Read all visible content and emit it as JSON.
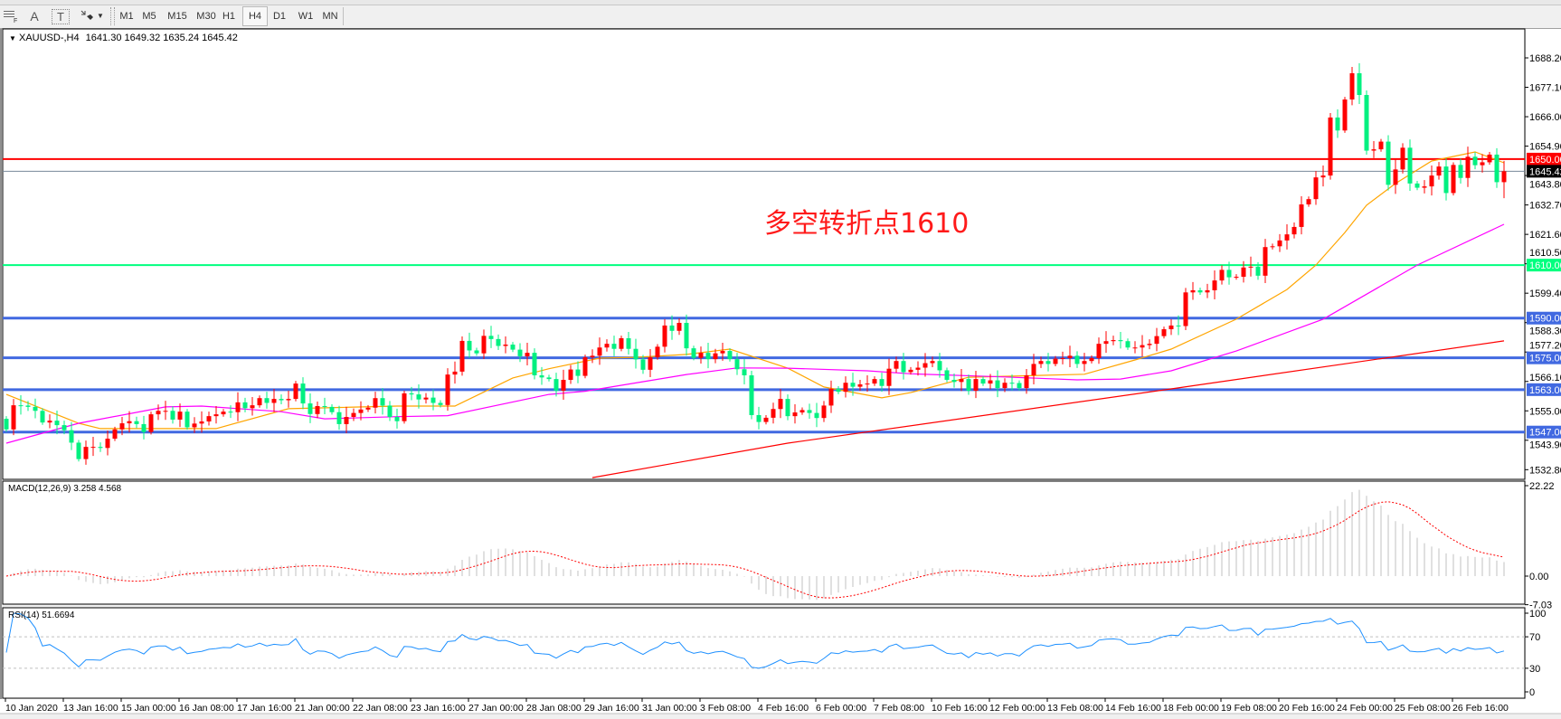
{
  "toolbar": {
    "icons": [
      "grid-f-icon",
      "text-a-icon",
      "text-label-icon",
      "arrows-icon",
      "dropdown-arrow-icon"
    ],
    "text_a": "A",
    "text_t": "T",
    "timeframes": [
      "M1",
      "M5",
      "M15",
      "M30",
      "H1",
      "H4",
      "D1",
      "W1",
      "MN"
    ],
    "active_timeframe": "H4"
  },
  "header": {
    "symbol": "XAUUSD-,H4",
    "ohlc": "1641.30 1649.32 1635.24 1645.42"
  },
  "annotation": "多空转折点1610",
  "chart_data": {
    "type": "candlestick",
    "up_color": "#FF0000",
    "down_color": "#00F080",
    "first_open": 1552.0,
    "last_bar": {
      "open": 1641.3,
      "high": 1649.32,
      "low": 1635.24,
      "close": 1645.42
    },
    "closes": [
      1548,
      1557.1,
      1557,
      1556.5,
      1555,
      1550.6,
      1551.3,
      1549.6,
      1547.7,
      1543,
      1536.8,
      1541.4,
      1541.4,
      1541,
      1544.5,
      1548,
      1550.3,
      1551.1,
      1550,
      1547,
      1553.7,
      1555,
      1555,
      1551.7,
      1554.7,
      1548.8,
      1550.2,
      1551,
      1553,
      1553.7,
      1554.7,
      1554.5,
      1558.2,
      1556,
      1557.1,
      1559.8,
      1558,
      1559.5,
      1559,
      1559.5,
      1565.3,
      1557.8,
      1553.8,
      1556.8,
      1556.5,
      1554.5,
      1550,
      1552.7,
      1554.2,
      1555.5,
      1556.2,
      1559.8,
      1557,
      1552.7,
      1551.1,
      1561.6,
      1561.2,
      1559.3,
      1560,
      1558,
      1557.2,
      1568.7,
      1569.8,
      1581.4,
      1577.8,
      1576.7,
      1583.3,
      1582.1,
      1579.5,
      1580,
      1578.1,
      1575.6,
      1576.9,
      1568.4,
      1567.6,
      1567,
      1562.6,
      1566.7,
      1570.6,
      1568.2,
      1575.2,
      1575.8,
      1578.9,
      1580.3,
      1578.4,
      1582.4,
      1578.4,
      1574.4,
      1570.5,
      1575.2,
      1579.2,
      1587.2,
      1585.2,
      1588.2,
      1578.6,
      1575,
      1576.9,
      1574.5,
      1576.7,
      1577.6,
      1574.5,
      1570.7,
      1568.4,
      1553.4,
      1550.8,
      1552.4,
      1555.7,
      1559.5,
      1553,
      1554.4,
      1555.3,
      1554.2,
      1552.3,
      1557,
      1563.3,
      1562.2,
      1565.6,
      1564.1,
      1565,
      1565.3,
      1567,
      1564.4,
      1570.9,
      1573.8,
      1569.6,
      1570.5,
      1571.3,
      1573,
      1573.8,
      1570.3,
      1566.7,
      1565.9,
      1567,
      1562.6,
      1567,
      1565.3,
      1566.5,
      1563.6,
      1565.6,
      1565.5,
      1563.6,
      1568.4,
      1572.7,
      1573.8,
      1572.7,
      1574.7,
      1574.9,
      1575.8,
      1572.7,
      1573.8,
      1574.9,
      1580.3,
      1581.3,
      1581.7,
      1581.3,
      1578.9,
      1578.9,
      1579.8,
      1580.3,
      1583.2,
      1585.8,
      1587.2,
      1587,
      1599.7,
      1600.5,
      1599.7,
      1600.5,
      1604.2,
      1608.2,
      1605.4,
      1605.6,
      1609.1,
      1609.4,
      1606,
      1616.8,
      1617.1,
      1619.3,
      1621.6,
      1624.4,
      1632.9,
      1634.9,
      1643.1,
      1643.8,
      1665.7,
      1660.8,
      1672.5,
      1682.4,
      1674.2,
      1653.2,
      1653.7,
      1656.6,
      1640.3,
      1646.1,
      1654.3,
      1640.8,
      1639.2,
      1639.7,
      1643.8,
      1647.2,
      1637.2,
      1647.8,
      1642.9,
      1650.9,
      1647.7,
      1648.8,
      1651.7,
      1641.3,
      1645.42
    ],
    "ma_lines": [
      {
        "color": "#FFA500",
        "points": [
          [
            1,
            1561.2
          ],
          [
            11,
            1550.3
          ],
          [
            14,
            1548.3
          ],
          [
            30,
            1548.3
          ],
          [
            40,
            1555.8
          ],
          [
            55,
            1556.8
          ],
          [
            63,
            1556.8
          ],
          [
            71,
            1567.4
          ],
          [
            76,
            1570.9
          ],
          [
            83,
            1574.9
          ],
          [
            88,
            1575.2
          ],
          [
            95,
            1576.3
          ],
          [
            101,
            1578.3
          ],
          [
            109,
            1571.1
          ],
          [
            114,
            1564
          ],
          [
            122,
            1559.9
          ],
          [
            126,
            1561.9
          ],
          [
            134,
            1567.7
          ],
          [
            150,
            1568.8
          ],
          [
            157,
            1574.2
          ],
          [
            162,
            1578.3
          ],
          [
            171,
            1589.6
          ],
          [
            178,
            1600.8
          ],
          [
            182,
            1610
          ],
          [
            186,
            1622.3
          ],
          [
            189,
            1632.6
          ],
          [
            193,
            1640.8
          ],
          [
            198,
            1649.3
          ],
          [
            204,
            1652.7
          ],
          [
            208,
            1648.6
          ]
        ]
      },
      {
        "color": "#FF00FF",
        "points": [
          [
            1,
            1542.8
          ],
          [
            11,
            1550.3
          ],
          [
            23,
            1556.5
          ],
          [
            28,
            1556.8
          ],
          [
            39,
            1554.7
          ],
          [
            45,
            1552
          ],
          [
            55,
            1552.8
          ],
          [
            62,
            1553.2
          ],
          [
            76,
            1561.2
          ],
          [
            81,
            1562.4
          ],
          [
            95,
            1568.7
          ],
          [
            102,
            1571.2
          ],
          [
            109,
            1571.1
          ],
          [
            120,
            1570.1
          ],
          [
            126,
            1569
          ],
          [
            139,
            1567.8
          ],
          [
            149,
            1566.7
          ],
          [
            155,
            1567
          ],
          [
            162,
            1570.1
          ],
          [
            171,
            1577.6
          ],
          [
            183,
            1589.6
          ],
          [
            196,
            1610
          ],
          [
            208,
            1625.4
          ]
        ]
      },
      {
        "color": "#FF0000",
        "points": [
          [
            82,
            1529.8
          ],
          [
            109,
            1542.8
          ],
          [
            162,
            1563.3
          ],
          [
            208,
            1581.4
          ]
        ]
      }
    ],
    "levels": [
      {
        "price": 1650.0,
        "label": "1650.00",
        "color": "#FF0000",
        "label_text_color": "#FFFFFF"
      },
      {
        "price": 1645.42,
        "label": "1645.42",
        "color": "#778899",
        "label_bg": "#000000",
        "label_text_color": "#FFFFFF"
      },
      {
        "price": 1610.0,
        "label": "1610.00",
        "color": "#00FF7F",
        "label_text_color": "#FFFFFF"
      },
      {
        "price": 1590.0,
        "label": "1590.00",
        "color": "#4169E1",
        "label_text_color": "#FFFFFF"
      },
      {
        "price": 1575.0,
        "label": "1575.00",
        "color": "#4169E1",
        "label_text_color": "#FFFFFF"
      },
      {
        "price": 1563.0,
        "label": "1563.00",
        "color": "#4169E1",
        "label_text_color": "#FFFFFF"
      },
      {
        "price": 1547.0,
        "label": "1547.00",
        "color": "#4169E1",
        "label_text_color": "#FFFFFF"
      }
    ],
    "price_ticks": [
      "1688.20",
      "1677.10",
      "1666.00",
      "1654.90",
      "1643.80",
      "1632.70",
      "1621.60",
      "1610.50",
      "1599.40",
      "1588.30",
      "1577.20",
      "1566.10",
      "1555.00",
      "1543.90",
      "1532.80"
    ],
    "time_labels": [
      "10 Jan 2020",
      "13 Jan 16:00",
      "15 Jan 00:00",
      "16 Jan 08:00",
      "17 Jan 16:00",
      "21 Jan 00:00",
      "22 Jan 08:00",
      "23 Jan 16:00",
      "27 Jan 00:00",
      "28 Jan 08:00",
      "29 Jan 16:00",
      "31 Jan 00:00",
      "3 Feb 08:00",
      "4 Feb 16:00",
      "6 Feb 00:00",
      "7 Feb 08:00",
      "10 Feb 16:00",
      "12 Feb 00:00",
      "13 Feb 08:00",
      "14 Feb 16:00",
      "18 Feb 00:00",
      "19 Feb 08:00",
      "20 Feb 16:00",
      "24 Feb 00:00",
      "25 Feb 08:00",
      "26 Feb 16:00"
    ],
    "macd": {
      "label": "MACD(12,26,9) 3.258 4.568",
      "fast": 12,
      "slow": 26,
      "signal": 9,
      "ticks": [
        "22.22",
        "0.00",
        "-7.03"
      ],
      "range": [
        -7.03,
        22.22
      ],
      "histogram_color": "#C0C0C0",
      "signal_color": "#FF0000"
    },
    "rsi": {
      "label": "RSI(14) 51.6694",
      "period": 14,
      "ticks": [
        "100",
        "70",
        "30",
        "0"
      ],
      "levels": [
        70,
        30
      ],
      "color": "#1E90FF"
    }
  }
}
